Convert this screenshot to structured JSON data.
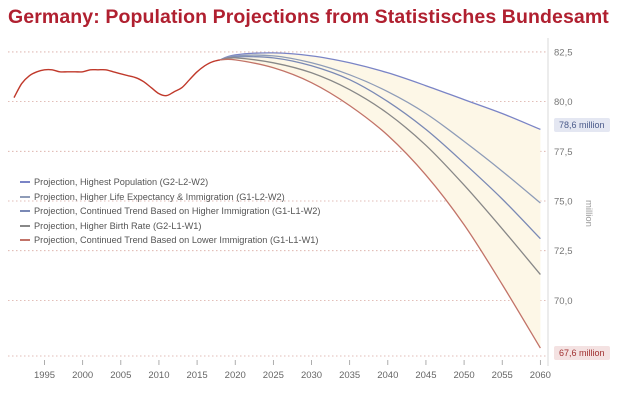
{
  "chart_data": {
    "type": "line",
    "title": "Germany: Population Projections from Statistisches Bundesamt",
    "xlabel": "",
    "ylabel": "million",
    "xlim": [
      1991,
      2061
    ],
    "ylim": [
      67.2,
      83.2
    ],
    "x_ticks": [
      1995,
      2000,
      2005,
      2010,
      2015,
      2020,
      2025,
      2030,
      2035,
      2040,
      2045,
      2050,
      2055,
      2060
    ],
    "y_ticks": [
      "82,5",
      "80,0",
      "77,5",
      "75,0",
      "72,5",
      "70,0"
    ],
    "y_tick_values": [
      82.5,
      80.0,
      77.5,
      75.0,
      72.5,
      70.0
    ],
    "grid": "horizontal dotted",
    "legend_position": "left-middle",
    "colors": {
      "historical": "#c0392b",
      "band_fill": "#fdf7e7",
      "g2_l2_w2": "#7a84c6",
      "g1_l2_w2": "#8e9cb8",
      "g1_l1_w2": "#7a89b5",
      "g2_l1_w1": "#888888",
      "g1_l1_w1": "#c27368"
    },
    "historical": {
      "x": [
        1991,
        1992,
        1993,
        1994,
        1995,
        1996,
        1997,
        1998,
        1999,
        2000,
        2001,
        2002,
        2003,
        2004,
        2005,
        2006,
        2007,
        2008,
        2009,
        2010,
        2011,
        2012,
        2013,
        2014,
        2015,
        2016,
        2017,
        2018
      ],
      "y": [
        80.2,
        80.9,
        81.3,
        81.5,
        81.6,
        81.6,
        81.5,
        81.5,
        81.5,
        81.5,
        81.6,
        81.6,
        81.6,
        81.5,
        81.4,
        81.3,
        81.2,
        81.0,
        80.7,
        80.4,
        80.3,
        80.5,
        80.7,
        81.1,
        81.5,
        81.8,
        82.0,
        82.1
      ]
    },
    "series": [
      {
        "name": "Projection, Highest Population (G2-L2-W2)",
        "x": [
          2018,
          2020,
          2025,
          2030,
          2035,
          2040,
          2045,
          2050,
          2055,
          2060
        ],
        "y": [
          82.1,
          82.35,
          82.45,
          82.3,
          81.95,
          81.45,
          80.8,
          80.1,
          79.4,
          78.6
        ]
      },
      {
        "name": "Projection, Higher Life Expectancy & Immigration (G1-L2-W2)",
        "x": [
          2018,
          2020,
          2025,
          2030,
          2035,
          2040,
          2045,
          2050,
          2055,
          2060
        ],
        "y": [
          82.1,
          82.3,
          82.3,
          81.95,
          81.35,
          80.5,
          79.4,
          78.0,
          76.5,
          74.9
        ]
      },
      {
        "name": "Projection, Continued Trend Based on Higher Immigration (G1-L1-W2)",
        "x": [
          2018,
          2020,
          2025,
          2030,
          2035,
          2040,
          2045,
          2050,
          2055,
          2060
        ],
        "y": [
          82.1,
          82.25,
          82.2,
          81.8,
          81.1,
          80.0,
          78.6,
          76.9,
          75.1,
          73.1
        ]
      },
      {
        "name": "Projection, Higher Birth Rate (G2-L1-W1)",
        "x": [
          2018,
          2020,
          2025,
          2030,
          2035,
          2040,
          2045,
          2050,
          2055,
          2060
        ],
        "y": [
          82.1,
          82.2,
          81.95,
          81.45,
          80.6,
          79.4,
          77.8,
          75.8,
          73.6,
          71.3
        ]
      },
      {
        "name": "Projection, Continued Trend Based on Lower Immigration (G1-L1-W1)",
        "x": [
          2018,
          2020,
          2025,
          2030,
          2035,
          2040,
          2045,
          2050,
          2055,
          2060
        ],
        "y": [
          82.1,
          82.1,
          81.7,
          80.95,
          79.8,
          78.3,
          76.3,
          73.8,
          70.8,
          67.6
        ]
      }
    ],
    "annotations": [
      {
        "text": "78,6 million",
        "x": 2060,
        "y": 78.6
      },
      {
        "text": "67,6 million",
        "x": 2060,
        "y": 67.6
      }
    ]
  }
}
